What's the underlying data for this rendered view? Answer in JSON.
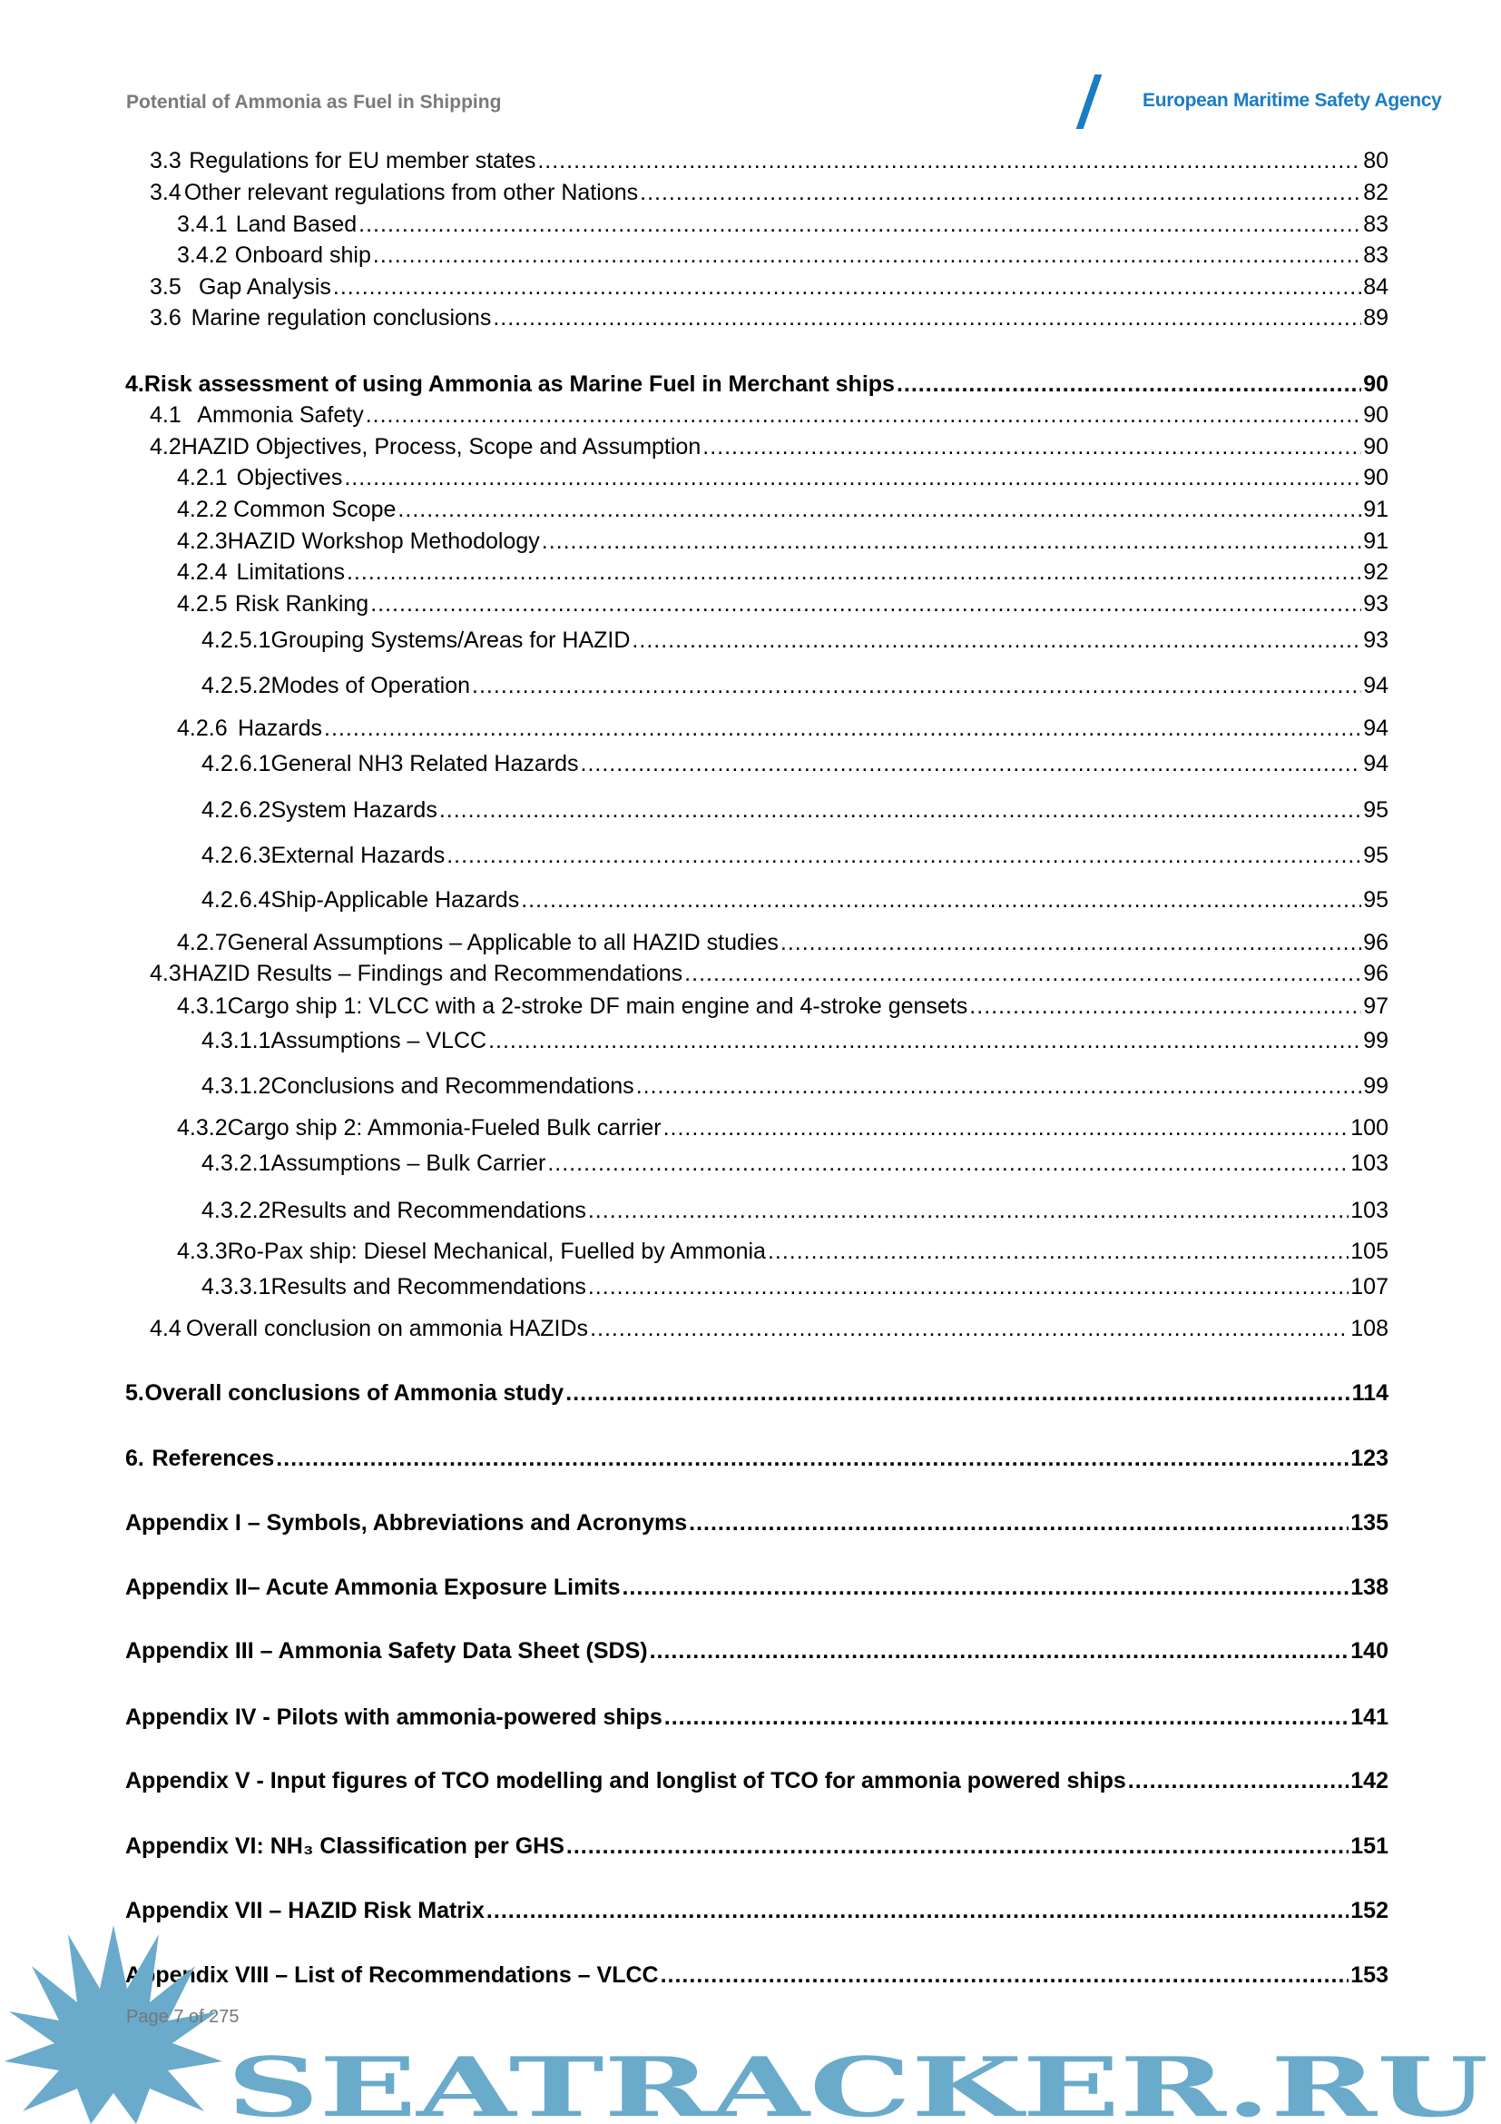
{
  "header": {
    "document_title": "Potential of Ammonia as Fuel in Shipping",
    "agency": "European Maritime Safety Agency",
    "brand_color": "#1a7dc4"
  },
  "toc": [
    {
      "level": 1,
      "num": "3.3",
      "title": "Regulations for EU member states",
      "page": "80"
    },
    {
      "level": 1,
      "num": "3.4",
      "title": "Other relevant regulations from other Nations",
      "page": "82"
    },
    {
      "level": 2,
      "num": "3.4.1",
      "title": "Land Based",
      "page": "83"
    },
    {
      "level": 2,
      "num": "3.4.2",
      "title": "Onboard ship",
      "page": "83"
    },
    {
      "level": 1,
      "num": "3.5",
      "title": "Gap Analysis",
      "page": "84"
    },
    {
      "level": 1,
      "num": "3.6",
      "title": "Marine regulation conclusions",
      "page": "89"
    },
    {
      "level": 0,
      "num": "4.",
      "title": "Risk assessment of using Ammonia as Marine Fuel in Merchant ships",
      "page": "90"
    },
    {
      "level": 1,
      "num": "4.1",
      "title": "Ammonia Safety",
      "page": "90"
    },
    {
      "level": 1,
      "num": "4.2",
      "title": "HAZID Objectives, Process, Scope and Assumption",
      "page": "90"
    },
    {
      "level": 2,
      "num": "4.2.1",
      "title": "Objectives",
      "page": "90"
    },
    {
      "level": 2,
      "num": "4.2.2",
      "title": "Common Scope",
      "page": "91"
    },
    {
      "level": 2,
      "num": "4.2.3",
      "title": "HAZID Workshop Methodology",
      "page": "91"
    },
    {
      "level": 2,
      "num": "4.2.4",
      "title": "Limitations",
      "page": "92"
    },
    {
      "level": 2,
      "num": "4.2.5",
      "title": "Risk Ranking",
      "page": "93"
    },
    {
      "level": 3,
      "num": "4.2.5.1",
      "title": "Grouping Systems/Areas for HAZID",
      "page": "93"
    },
    {
      "level": 3,
      "num": "4.2.5.2",
      "title": "Modes of Operation",
      "page": "94"
    },
    {
      "level": 2,
      "num": "4.2.6",
      "title": "Hazards",
      "page": "94"
    },
    {
      "level": 3,
      "num": "4.2.6.1",
      "title": "General NH3 Related Hazards",
      "page": "94"
    },
    {
      "level": 3,
      "num": "4.2.6.2",
      "title": "System Hazards",
      "page": "95"
    },
    {
      "level": 3,
      "num": "4.2.6.3",
      "title": "External Hazards",
      "page": "95"
    },
    {
      "level": 3,
      "num": "4.2.6.4",
      "title": "Ship-Applicable Hazards",
      "page": "95"
    },
    {
      "level": 2,
      "num": "4.2.7",
      "title": "General Assumptions – Applicable to all HAZID studies",
      "page": "96"
    },
    {
      "level": 1,
      "num": "4.3",
      "title": "HAZID Results – Findings and Recommendations",
      "page": "96"
    },
    {
      "level": 2,
      "num": "4.3.1",
      "title": "Cargo ship 1: VLCC with a 2-stroke DF main engine and 4-stroke gensets",
      "page": "97"
    },
    {
      "level": 3,
      "num": "4.3.1.1",
      "title": "Assumptions – VLCC",
      "page": "99"
    },
    {
      "level": 3,
      "num": "4.3.1.2",
      "title": "Conclusions and Recommendations",
      "page": "99"
    },
    {
      "level": 2,
      "num": "4.3.2",
      "title": "Cargo ship 2: Ammonia-Fueled Bulk carrier",
      "page": "100"
    },
    {
      "level": 3,
      "num": "4.3.2.1",
      "title": "Assumptions – Bulk Carrier",
      "page": "103"
    },
    {
      "level": 3,
      "num": "4.3.2.2",
      "title": "Results and Recommendations",
      "page": "103"
    },
    {
      "level": 2,
      "num": "4.3.3",
      "title": "Ro-Pax ship: Diesel Mechanical, Fuelled by Ammonia",
      "page": "105"
    },
    {
      "level": 3,
      "num": "4.3.3.1",
      "title": "Results and Recommendations",
      "page": "107"
    },
    {
      "level": 1,
      "num": "4.4",
      "title": "Overall conclusion on ammonia HAZIDs",
      "page": "108"
    },
    {
      "level": 0,
      "num": "5.",
      "title": "Overall conclusions of Ammonia study",
      "page": "114"
    },
    {
      "level": 0,
      "num": "6.",
      "title": "References",
      "page": "123"
    },
    {
      "level": -1,
      "num": "",
      "title": "Appendix I – Symbols, Abbreviations and Acronyms",
      "page": "135"
    },
    {
      "level": -1,
      "num": "",
      "title": "Appendix II– Acute Ammonia Exposure Limits",
      "page": "138"
    },
    {
      "level": -1,
      "num": "",
      "title": "Appendix III – Ammonia Safety Data Sheet (SDS)",
      "page": "140"
    },
    {
      "level": -1,
      "num": "",
      "title": "Appendix IV - Pilots with ammonia-powered ships",
      "page": "141"
    },
    {
      "level": -1,
      "num": "",
      "title": "Appendix V - Input figures of TCO modelling and longlist of TCO for ammonia powered ships",
      "page": "142"
    },
    {
      "level": -1,
      "num": "",
      "title": "Appendix VI: NH₃ Classification per GHS",
      "page": "151"
    },
    {
      "level": -1,
      "num": "",
      "title": "Appendix VII – HAZID Risk Matrix",
      "page": "152"
    },
    {
      "level": -1,
      "num": "",
      "title": "Appendix VIII – List of Recommendations – VLCC",
      "page": "153"
    }
  ],
  "footer": {
    "page_label": "Page 7 of 275"
  },
  "watermark": {
    "text": "SEATRACKER.RU",
    "color": "#6aaacb"
  }
}
